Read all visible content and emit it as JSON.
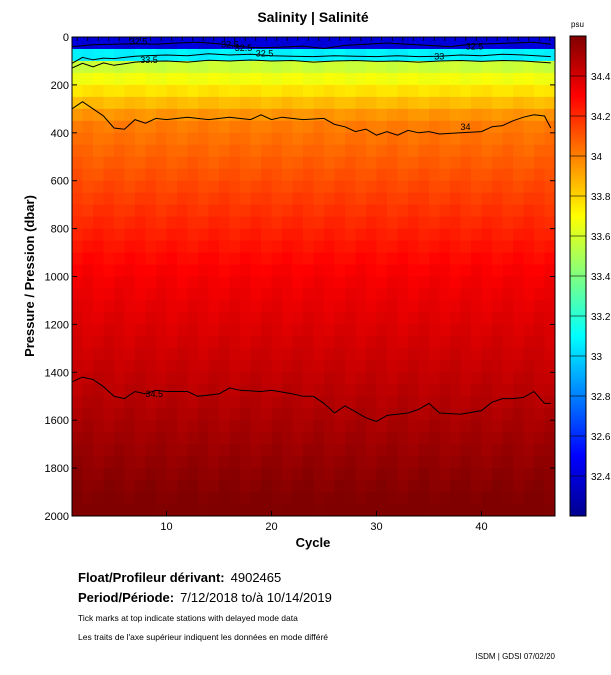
{
  "chart_data": {
    "type": "heatmap",
    "title": "Salinity | Salinité",
    "xlabel": "Cycle",
    "ylabel": "Pressure / Pression (dbar)",
    "colorbar_unit": "psu",
    "xlim": [
      1,
      47
    ],
    "ylim": [
      0,
      2000
    ],
    "y_inverted": true,
    "x_ticks": [
      10,
      20,
      30,
      40
    ],
    "y_ticks": [
      0,
      200,
      400,
      600,
      800,
      1000,
      1200,
      1400,
      1600,
      1800,
      2000
    ],
    "colorbar_range": [
      32.2,
      34.6
    ],
    "colorbar_ticks": [
      "34.4",
      "34.2",
      "34",
      "33.8",
      "33.6",
      "33.4",
      "33.2",
      "33",
      "32.8",
      "32.6",
      "32.4"
    ],
    "colorbar_tick_values": [
      34.4,
      34.2,
      34.0,
      33.8,
      33.6,
      33.4,
      33.2,
      33.0,
      32.8,
      32.6,
      32.4
    ],
    "colormap": [
      "#00008f",
      "#0000ff",
      "#0080ff",
      "#00ffff",
      "#80ff80",
      "#ffff00",
      "#ff8000",
      "#ff0000",
      "#800000"
    ],
    "contours": [
      {
        "label": "34",
        "label_at": [
          38,
          375
        ],
        "points": [
          [
            1,
            300
          ],
          [
            2,
            270
          ],
          [
            3,
            300
          ],
          [
            4,
            330
          ],
          [
            5,
            380
          ],
          [
            6,
            385
          ],
          [
            7,
            345
          ],
          [
            8,
            360
          ],
          [
            9,
            340
          ],
          [
            10,
            345
          ],
          [
            12,
            335
          ],
          [
            14,
            345
          ],
          [
            16,
            335
          ],
          [
            18,
            345
          ],
          [
            19,
            325
          ],
          [
            20,
            345
          ],
          [
            21,
            335
          ],
          [
            23,
            345
          ],
          [
            25,
            340
          ],
          [
            26,
            365
          ],
          [
            27,
            375
          ],
          [
            28,
            395
          ],
          [
            29,
            385
          ],
          [
            30,
            410
          ],
          [
            31,
            395
          ],
          [
            32,
            410
          ],
          [
            33,
            390
          ],
          [
            34,
            400
          ],
          [
            35,
            395
          ],
          [
            36,
            405
          ],
          [
            38,
            400
          ],
          [
            40,
            395
          ],
          [
            41,
            375
          ],
          [
            42,
            370
          ],
          [
            43,
            350
          ],
          [
            44,
            335
          ],
          [
            45,
            325
          ],
          [
            46,
            330
          ],
          [
            46.6,
            380
          ]
        ]
      },
      {
        "label": "34.5",
        "label_at": [
          8,
          1490
        ],
        "points": [
          [
            1,
            1440
          ],
          [
            2,
            1420
          ],
          [
            3,
            1430
          ],
          [
            4,
            1460
          ],
          [
            5,
            1500
          ],
          [
            6,
            1510
          ],
          [
            7,
            1480
          ],
          [
            8,
            1490
          ],
          [
            9,
            1475
          ],
          [
            10,
            1480
          ],
          [
            12,
            1480
          ],
          [
            13,
            1500
          ],
          [
            15,
            1490
          ],
          [
            16,
            1465
          ],
          [
            17,
            1475
          ],
          [
            19,
            1480
          ],
          [
            20,
            1475
          ],
          [
            22,
            1490
          ],
          [
            23,
            1500
          ],
          [
            24,
            1500
          ],
          [
            25,
            1530
          ],
          [
            26,
            1570
          ],
          [
            27,
            1540
          ],
          [
            28,
            1565
          ],
          [
            29,
            1590
          ],
          [
            30,
            1605
          ],
          [
            31,
            1580
          ],
          [
            32,
            1575
          ],
          [
            33,
            1570
          ],
          [
            34,
            1555
          ],
          [
            35,
            1530
          ],
          [
            36,
            1570
          ],
          [
            38,
            1575
          ],
          [
            40,
            1560
          ],
          [
            41,
            1525
          ],
          [
            42,
            1510
          ],
          [
            43,
            1510
          ],
          [
            44,
            1505
          ],
          [
            45,
            1480
          ],
          [
            46,
            1530
          ],
          [
            46.6,
            1530
          ]
        ]
      },
      {
        "label": "33.5",
        "label_at": [
          7.5,
          95
        ],
        "points": [
          [
            1,
            130
          ],
          [
            2,
            110
          ],
          [
            3,
            125
          ],
          [
            4,
            108
          ],
          [
            5,
            118
          ],
          [
            6,
            112
          ],
          [
            7,
            105
          ],
          [
            8,
            102
          ],
          [
            10,
            100
          ],
          [
            12,
            105
          ],
          [
            14,
            97
          ],
          [
            16,
            100
          ],
          [
            18,
            96
          ],
          [
            20,
            100
          ],
          [
            22,
            98
          ],
          [
            24,
            105
          ],
          [
            26,
            100
          ],
          [
            28,
            98
          ],
          [
            30,
            102
          ],
          [
            32,
            100
          ],
          [
            34,
            105
          ],
          [
            36,
            100
          ],
          [
            38,
            98
          ],
          [
            40,
            102
          ],
          [
            42,
            98
          ],
          [
            44,
            100
          ],
          [
            46.6,
            108
          ]
        ]
      },
      {
        "label": "33",
        "label_at": [
          35.5,
          82
        ],
        "points": [
          [
            1,
            110
          ],
          [
            2,
            85
          ],
          [
            3,
            95
          ],
          [
            4,
            88
          ],
          [
            5,
            90
          ],
          [
            6,
            85
          ],
          [
            7,
            80
          ],
          [
            8,
            78
          ],
          [
            10,
            75
          ],
          [
            12,
            78
          ],
          [
            14,
            70
          ],
          [
            16,
            75
          ],
          [
            18,
            72
          ],
          [
            20,
            78
          ],
          [
            22,
            80
          ],
          [
            24,
            82
          ],
          [
            26,
            78
          ],
          [
            28,
            80
          ],
          [
            30,
            82
          ],
          [
            32,
            78
          ],
          [
            34,
            82
          ],
          [
            36,
            80
          ],
          [
            38,
            75
          ],
          [
            40,
            78
          ],
          [
            42,
            72
          ],
          [
            44,
            75
          ],
          [
            46.6,
            82
          ]
        ]
      },
      {
        "label": "32.5",
        "label_at": [
          16.5,
          45
        ],
        "points": [
          [
            1,
            40
          ],
          [
            3,
            32
          ],
          [
            5,
            30
          ],
          [
            7,
            28
          ],
          [
            9,
            30
          ],
          [
            11,
            25
          ],
          [
            13,
            22
          ],
          [
            15,
            28
          ],
          [
            17,
            40
          ],
          [
            19,
            45
          ],
          [
            21,
            42
          ],
          [
            23,
            38
          ],
          [
            25,
            48
          ],
          [
            27,
            35
          ],
          [
            29,
            30
          ],
          [
            31,
            25
          ],
          [
            33,
            30
          ],
          [
            35,
            35
          ],
          [
            37,
            40
          ],
          [
            39,
            30
          ],
          [
            41,
            28
          ],
          [
            43,
            25
          ],
          [
            45,
            22
          ],
          [
            46.6,
            30
          ]
        ]
      }
    ],
    "extra_labels": [
      {
        "text": "32.5",
        "at": [
          18.5,
          68
        ]
      },
      {
        "text": "32.5",
        "at": [
          38.5,
          40
        ]
      },
      {
        "text": "32.5",
        "at": [
          15.2,
          32
        ]
      },
      {
        "text": "32.5",
        "at": [
          6.5,
          18
        ]
      }
    ],
    "top_tick_cycles": [
      1,
      2,
      3,
      4,
      5,
      6,
      7,
      8,
      9,
      10,
      11,
      12,
      13,
      14,
      15,
      16,
      17,
      18,
      19,
      20,
      21,
      22,
      23,
      24,
      25,
      26,
      27,
      28,
      29,
      30,
      31,
      32,
      33,
      34,
      35,
      36,
      37,
      38,
      39,
      40,
      41,
      42,
      43,
      44,
      45,
      46
    ]
  },
  "footer": {
    "float_label": "Float/Profileur dérivant:",
    "float_id": "4902465",
    "period_label": "Period/Période:",
    "period_value": "7/12/2018  to/à  10/14/2019",
    "note_en": "Tick marks at top indicate stations with delayed mode data",
    "note_fr": "Les traits de l'axe supérieur indiquent les données en mode différé",
    "credit": "ISDM | GDSI  07/02/20"
  }
}
